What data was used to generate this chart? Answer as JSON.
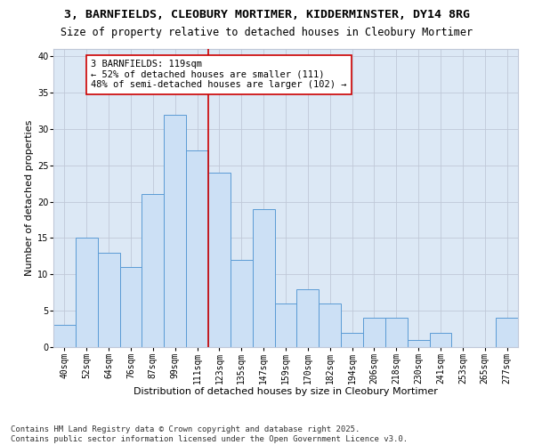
{
  "title_line1": "3, BARNFIELDS, CLEOBURY MORTIMER, KIDDERMINSTER, DY14 8RG",
  "title_line2": "Size of property relative to detached houses in Cleobury Mortimer",
  "xlabel": "Distribution of detached houses by size in Cleobury Mortimer",
  "ylabel": "Number of detached properties",
  "bar_labels": [
    "40sqm",
    "52sqm",
    "64sqm",
    "76sqm",
    "87sqm",
    "99sqm",
    "111sqm",
    "123sqm",
    "135sqm",
    "147sqm",
    "159sqm",
    "170sqm",
    "182sqm",
    "194sqm",
    "206sqm",
    "218sqm",
    "230sqm",
    "241sqm",
    "253sqm",
    "265sqm",
    "277sqm"
  ],
  "bar_values": [
    3,
    15,
    13,
    11,
    21,
    32,
    27,
    24,
    12,
    19,
    6,
    8,
    6,
    2,
    4,
    4,
    1,
    2,
    0,
    0,
    4
  ],
  "bar_color": "#cce0f5",
  "bar_edge_color": "#5b9bd5",
  "vline_color": "#cc0000",
  "annotation_title": "3 BARNFIELDS: 119sqm",
  "annotation_line1": "← 52% of detached houses are smaller (111)",
  "annotation_line2": "48% of semi-detached houses are larger (102) →",
  "annotation_box_color": "#ffffff",
  "annotation_box_edge": "#cc0000",
  "ylim": [
    0,
    41
  ],
  "yticks": [
    0,
    5,
    10,
    15,
    20,
    25,
    30,
    35,
    40
  ],
  "grid_color": "#c0c8d8",
  "bg_color": "#dce8f5",
  "footnote1": "Contains HM Land Registry data © Crown copyright and database right 2025.",
  "footnote2": "Contains public sector information licensed under the Open Government Licence v3.0.",
  "title_fontsize": 9.5,
  "subtitle_fontsize": 8.5,
  "axis_label_fontsize": 8,
  "tick_fontsize": 7,
  "annotation_fontsize": 7.5,
  "footnote_fontsize": 6.5
}
